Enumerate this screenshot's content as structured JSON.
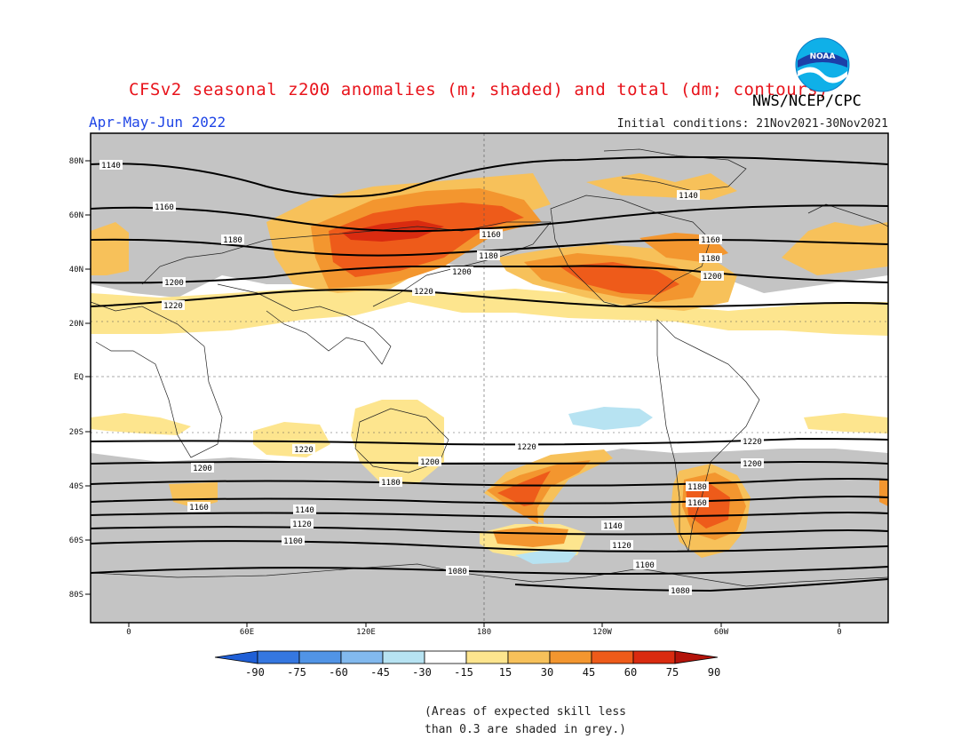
{
  "title": "CFSv2 seasonal z200 anomalies (m; shaded) and total (dm; contours)",
  "season": "Apr-May-Jun 2022",
  "initial_conditions": "Initial conditions: 21Nov2021-30Nov2021",
  "organization": "NWS/NCEP/CPC",
  "logo_text": "NOAA",
  "note": [
    "(Areas of expected skill less",
    "than 0.3 are shaded in grey.)"
  ],
  "colors": {
    "skill_grey": "#c4c4c4",
    "ocean_white": "#ffffff",
    "title_red": "#e8131b",
    "season_blue": "#1f45e6"
  },
  "lat_labels": [
    "80N",
    "60N",
    "40N",
    "20N",
    "EQ",
    "20S",
    "40S",
    "60S",
    "80S"
  ],
  "lon_labels": [
    "0",
    "60E",
    "120E",
    "180",
    "120W",
    "60W",
    "0"
  ],
  "colorbar": {
    "labels": [
      "-90",
      "-75",
      "-60",
      "-45",
      "-30",
      "-15",
      "15",
      "30",
      "45",
      "60",
      "75",
      "90"
    ],
    "colors": [
      "#1f5fd6",
      "#3577e0",
      "#5194e6",
      "#82b9ee",
      "#b7e3f2",
      "#ffffff",
      "#fde58e",
      "#f7c15a",
      "#f3962f",
      "#ee5b1a",
      "#d92b10",
      "#b3130a"
    ]
  },
  "contours": [
    {
      "label": "1140",
      "lat": 75
    },
    {
      "label": "1160",
      "lat": 60
    },
    {
      "label": "1180",
      "lat": 48
    },
    {
      "label": "1200",
      "lat": 38
    },
    {
      "label": "1220",
      "lat": 28
    },
    {
      "label": "1220",
      "lat": -25
    },
    {
      "label": "1200",
      "lat": -32
    },
    {
      "label": "1180",
      "lat": -40
    },
    {
      "label": "1160",
      "lat": -47
    },
    {
      "label": "1140",
      "lat": -53
    },
    {
      "label": "1120",
      "lat": -58
    },
    {
      "label": "1100",
      "lat": -63
    },
    {
      "label": "1080",
      "lat": -72
    }
  ],
  "contour_label_texts": {
    "north": [
      "1140",
      "1160",
      "1180",
      "1200",
      "1220",
      "1140",
      "1160",
      "1180",
      "1200",
      "1220",
      "1160",
      "1180",
      "1200"
    ],
    "south": [
      "1220",
      "1200",
      "1180",
      "1160",
      "1140",
      "1120",
      "1100",
      "1080",
      "1220",
      "1200",
      "1180",
      "1160",
      "1140",
      "1120",
      "1100",
      "1080",
      "1220",
      "1200"
    ]
  }
}
